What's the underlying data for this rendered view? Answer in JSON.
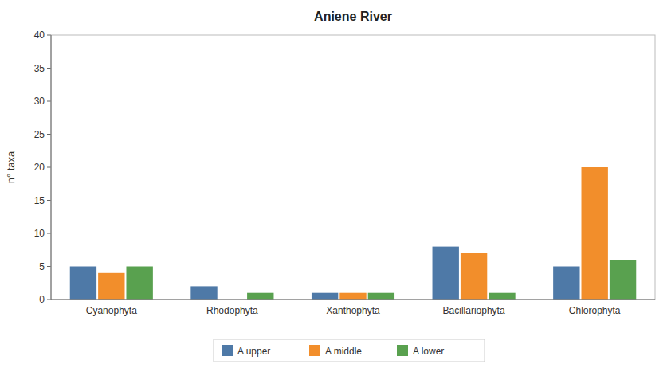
{
  "chart_data": {
    "type": "bar",
    "title": "Aniene River",
    "ylabel": "n° taxa",
    "categories": [
      "Cyanophyta",
      "Rhodophyta",
      "Xanthophyta",
      "Bacillariophyta",
      "Chlorophyta"
    ],
    "series": [
      {
        "name": "A upper",
        "color": "#4e79a7",
        "values": [
          5,
          2,
          1,
          8,
          5
        ]
      },
      {
        "name": "A middle",
        "color": "#f28e2b",
        "values": [
          4,
          0,
          1,
          7,
          20
        ]
      },
      {
        "name": "A lower",
        "color": "#59a14f",
        "values": [
          5,
          1,
          1,
          1,
          6
        ]
      }
    ],
    "ylim": [
      0,
      40
    ],
    "yticks": [
      0,
      5,
      10,
      15,
      20,
      25,
      30,
      35,
      40
    ],
    "grid": false,
    "legend": "bottom"
  }
}
